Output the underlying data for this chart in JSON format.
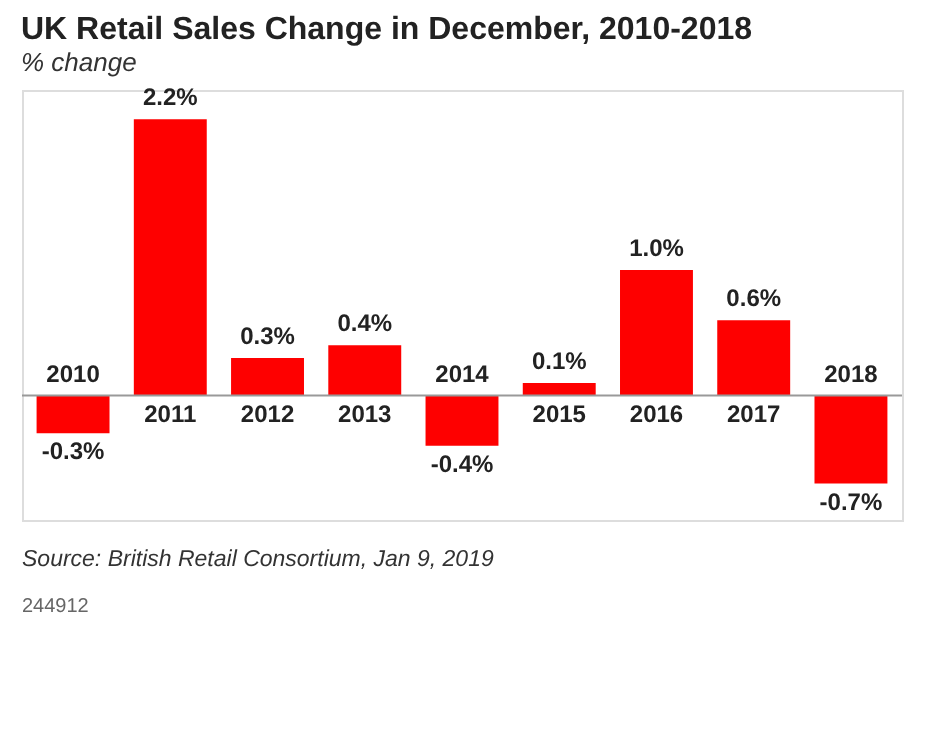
{
  "chart_data": {
    "type": "bar",
    "title": "UK Retail Sales Change in December, 2010-2018",
    "subtitle": "% change",
    "categories": [
      "2010",
      "2011",
      "2012",
      "2013",
      "2014",
      "2015",
      "2016",
      "2017",
      "2018"
    ],
    "values": [
      -0.3,
      2.2,
      0.3,
      0.4,
      -0.4,
      0.1,
      1.0,
      0.6,
      -0.7
    ],
    "value_labels": [
      "-0.3%",
      "2.2%",
      "0.3%",
      "0.4%",
      "-0.4%",
      "0.1%",
      "1.0%",
      "0.6%",
      "-0.7%"
    ],
    "color": "#fe0000",
    "annotations": [
      "Source: British Retail Consortium, Jan 9, 2019",
      "244912"
    ]
  }
}
